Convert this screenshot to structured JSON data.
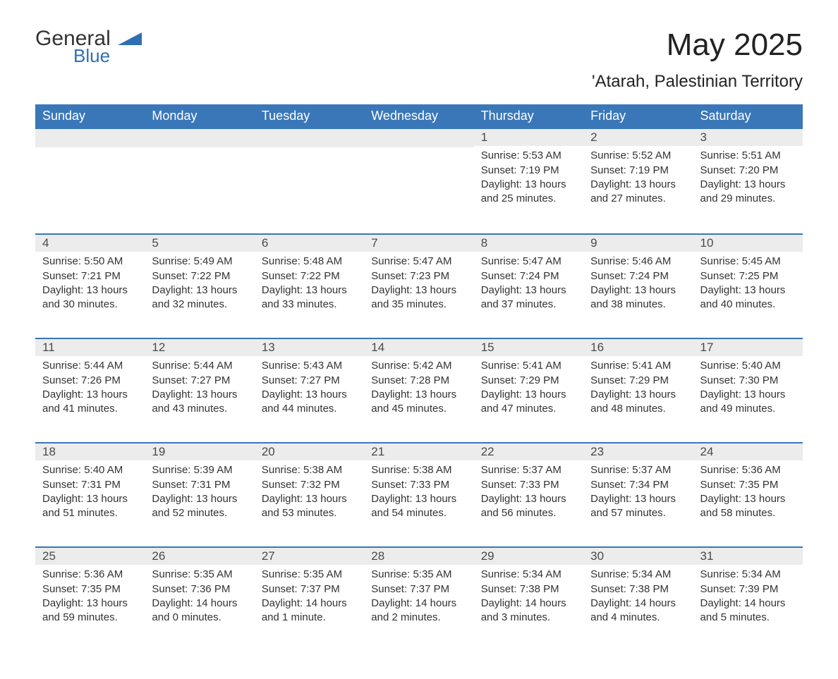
{
  "logo": {
    "text_main": "General",
    "text_accent": "Blue",
    "accent_color": "#2f6fb3",
    "shape_color": "#2f6fb3"
  },
  "title": "May 2025",
  "subtitle": "'Atarah, Palestinian Territory",
  "colors": {
    "header_bg": "#3a77b8",
    "header_text": "#ffffff",
    "daynum_bg": "#ececec",
    "row_border": "#3a77b8",
    "body_text": "#333333"
  },
  "day_headers": [
    "Sunday",
    "Monday",
    "Tuesday",
    "Wednesday",
    "Thursday",
    "Friday",
    "Saturday"
  ],
  "weeks": [
    [
      null,
      null,
      null,
      null,
      {
        "n": "1",
        "sr": "Sunrise: 5:53 AM",
        "ss": "Sunset: 7:19 PM",
        "dl": "Daylight: 13 hours and 25 minutes."
      },
      {
        "n": "2",
        "sr": "Sunrise: 5:52 AM",
        "ss": "Sunset: 7:19 PM",
        "dl": "Daylight: 13 hours and 27 minutes."
      },
      {
        "n": "3",
        "sr": "Sunrise: 5:51 AM",
        "ss": "Sunset: 7:20 PM",
        "dl": "Daylight: 13 hours and 29 minutes."
      }
    ],
    [
      {
        "n": "4",
        "sr": "Sunrise: 5:50 AM",
        "ss": "Sunset: 7:21 PM",
        "dl": "Daylight: 13 hours and 30 minutes."
      },
      {
        "n": "5",
        "sr": "Sunrise: 5:49 AM",
        "ss": "Sunset: 7:22 PM",
        "dl": "Daylight: 13 hours and 32 minutes."
      },
      {
        "n": "6",
        "sr": "Sunrise: 5:48 AM",
        "ss": "Sunset: 7:22 PM",
        "dl": "Daylight: 13 hours and 33 minutes."
      },
      {
        "n": "7",
        "sr": "Sunrise: 5:47 AM",
        "ss": "Sunset: 7:23 PM",
        "dl": "Daylight: 13 hours and 35 minutes."
      },
      {
        "n": "8",
        "sr": "Sunrise: 5:47 AM",
        "ss": "Sunset: 7:24 PM",
        "dl": "Daylight: 13 hours and 37 minutes."
      },
      {
        "n": "9",
        "sr": "Sunrise: 5:46 AM",
        "ss": "Sunset: 7:24 PM",
        "dl": "Daylight: 13 hours and 38 minutes."
      },
      {
        "n": "10",
        "sr": "Sunrise: 5:45 AM",
        "ss": "Sunset: 7:25 PM",
        "dl": "Daylight: 13 hours and 40 minutes."
      }
    ],
    [
      {
        "n": "11",
        "sr": "Sunrise: 5:44 AM",
        "ss": "Sunset: 7:26 PM",
        "dl": "Daylight: 13 hours and 41 minutes."
      },
      {
        "n": "12",
        "sr": "Sunrise: 5:44 AM",
        "ss": "Sunset: 7:27 PM",
        "dl": "Daylight: 13 hours and 43 minutes."
      },
      {
        "n": "13",
        "sr": "Sunrise: 5:43 AM",
        "ss": "Sunset: 7:27 PM",
        "dl": "Daylight: 13 hours and 44 minutes."
      },
      {
        "n": "14",
        "sr": "Sunrise: 5:42 AM",
        "ss": "Sunset: 7:28 PM",
        "dl": "Daylight: 13 hours and 45 minutes."
      },
      {
        "n": "15",
        "sr": "Sunrise: 5:41 AM",
        "ss": "Sunset: 7:29 PM",
        "dl": "Daylight: 13 hours and 47 minutes."
      },
      {
        "n": "16",
        "sr": "Sunrise: 5:41 AM",
        "ss": "Sunset: 7:29 PM",
        "dl": "Daylight: 13 hours and 48 minutes."
      },
      {
        "n": "17",
        "sr": "Sunrise: 5:40 AM",
        "ss": "Sunset: 7:30 PM",
        "dl": "Daylight: 13 hours and 49 minutes."
      }
    ],
    [
      {
        "n": "18",
        "sr": "Sunrise: 5:40 AM",
        "ss": "Sunset: 7:31 PM",
        "dl": "Daylight: 13 hours and 51 minutes."
      },
      {
        "n": "19",
        "sr": "Sunrise: 5:39 AM",
        "ss": "Sunset: 7:31 PM",
        "dl": "Daylight: 13 hours and 52 minutes."
      },
      {
        "n": "20",
        "sr": "Sunrise: 5:38 AM",
        "ss": "Sunset: 7:32 PM",
        "dl": "Daylight: 13 hours and 53 minutes."
      },
      {
        "n": "21",
        "sr": "Sunrise: 5:38 AM",
        "ss": "Sunset: 7:33 PM",
        "dl": "Daylight: 13 hours and 54 minutes."
      },
      {
        "n": "22",
        "sr": "Sunrise: 5:37 AM",
        "ss": "Sunset: 7:33 PM",
        "dl": "Daylight: 13 hours and 56 minutes."
      },
      {
        "n": "23",
        "sr": "Sunrise: 5:37 AM",
        "ss": "Sunset: 7:34 PM",
        "dl": "Daylight: 13 hours and 57 minutes."
      },
      {
        "n": "24",
        "sr": "Sunrise: 5:36 AM",
        "ss": "Sunset: 7:35 PM",
        "dl": "Daylight: 13 hours and 58 minutes."
      }
    ],
    [
      {
        "n": "25",
        "sr": "Sunrise: 5:36 AM",
        "ss": "Sunset: 7:35 PM",
        "dl": "Daylight: 13 hours and 59 minutes."
      },
      {
        "n": "26",
        "sr": "Sunrise: 5:35 AM",
        "ss": "Sunset: 7:36 PM",
        "dl": "Daylight: 14 hours and 0 minutes."
      },
      {
        "n": "27",
        "sr": "Sunrise: 5:35 AM",
        "ss": "Sunset: 7:37 PM",
        "dl": "Daylight: 14 hours and 1 minute."
      },
      {
        "n": "28",
        "sr": "Sunrise: 5:35 AM",
        "ss": "Sunset: 7:37 PM",
        "dl": "Daylight: 14 hours and 2 minutes."
      },
      {
        "n": "29",
        "sr": "Sunrise: 5:34 AM",
        "ss": "Sunset: 7:38 PM",
        "dl": "Daylight: 14 hours and 3 minutes."
      },
      {
        "n": "30",
        "sr": "Sunrise: 5:34 AM",
        "ss": "Sunset: 7:38 PM",
        "dl": "Daylight: 14 hours and 4 minutes."
      },
      {
        "n": "31",
        "sr": "Sunrise: 5:34 AM",
        "ss": "Sunset: 7:39 PM",
        "dl": "Daylight: 14 hours and 5 minutes."
      }
    ]
  ]
}
